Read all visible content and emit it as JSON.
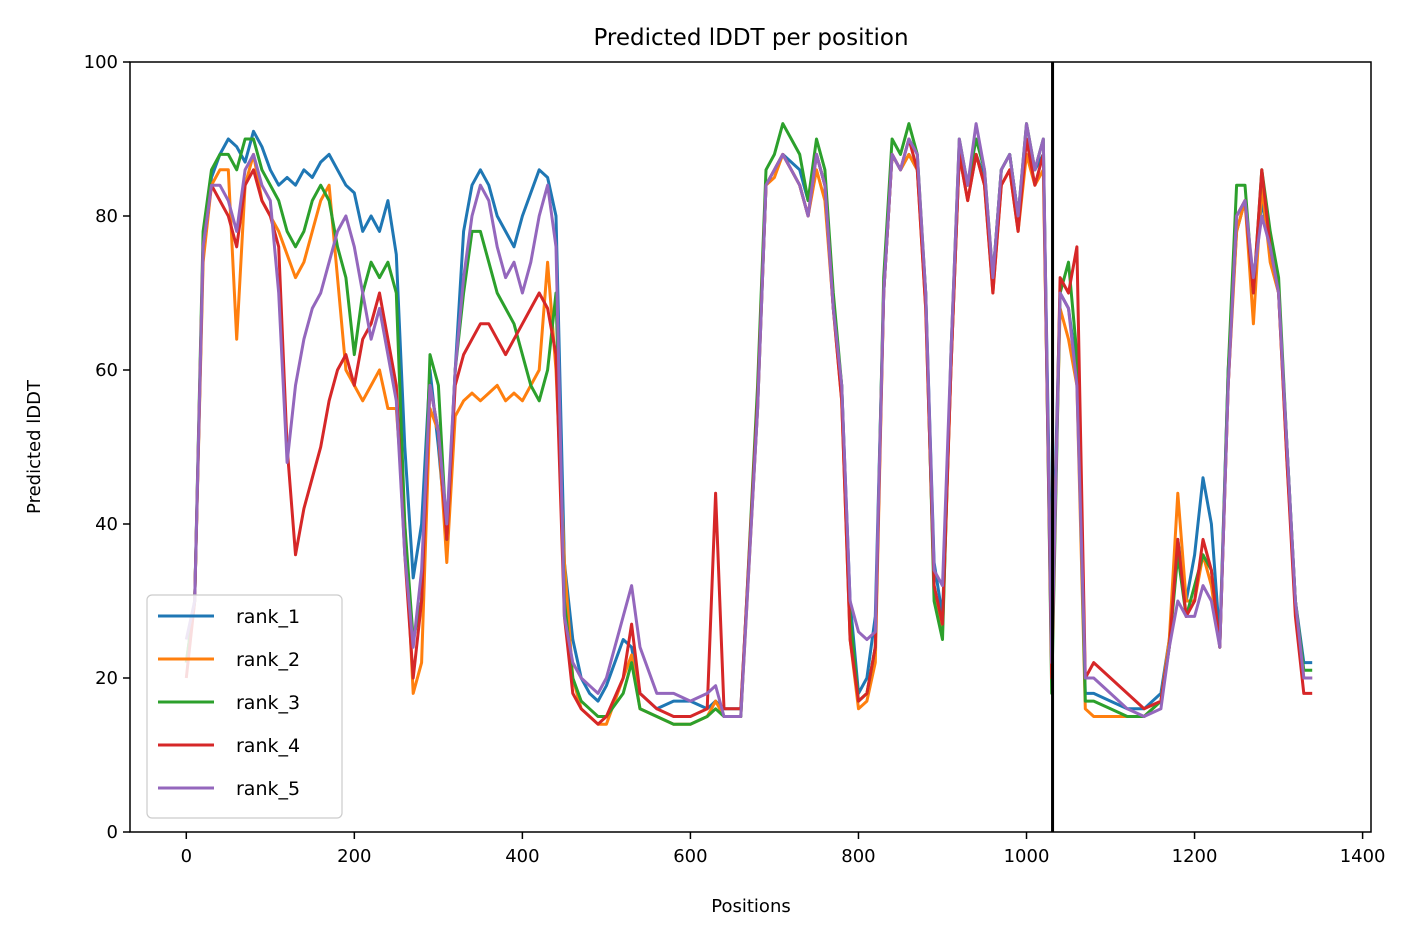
{
  "chart_data": {
    "type": "line",
    "title": "Predicted lDDT per position",
    "xlabel": "Positions",
    "ylabel": "Predicted lDDT",
    "xlim": [
      -67,
      1410
    ],
    "ylim": [
      0,
      100
    ],
    "xticks": [
      0,
      200,
      400,
      600,
      800,
      1000,
      1200,
      1400
    ],
    "yticks": [
      0,
      20,
      40,
      60,
      80,
      100
    ],
    "grid": false,
    "legend_position": "lower-left",
    "vline": {
      "x": 1031,
      "color": "#000000"
    },
    "series": [
      {
        "name": "rank_1",
        "color": "#1f77b4",
        "x": [
          0,
          10,
          20,
          30,
          40,
          50,
          60,
          70,
          80,
          90,
          100,
          110,
          120,
          130,
          140,
          150,
          160,
          170,
          180,
          190,
          200,
          210,
          220,
          230,
          240,
          250,
          260,
          270,
          280,
          290,
          300,
          310,
          320,
          330,
          340,
          350,
          360,
          370,
          380,
          390,
          400,
          410,
          420,
          430,
          440,
          450,
          460,
          470,
          480,
          490,
          500,
          520,
          530,
          540,
          560,
          580,
          600,
          620,
          630,
          640,
          660,
          680,
          690,
          700,
          710,
          720,
          730,
          740,
          750,
          760,
          770,
          780,
          790,
          800,
          810,
          820,
          830,
          840,
          850,
          860,
          870,
          880,
          890,
          900,
          910,
          920,
          930,
          940,
          950,
          960,
          970,
          980,
          990,
          1000,
          1010,
          1020,
          1030,
          1040,
          1050,
          1060,
          1070,
          1080,
          1100,
          1120,
          1140,
          1160,
          1170,
          1180,
          1190,
          1200,
          1210,
          1220,
          1230,
          1240,
          1250,
          1260,
          1270,
          1280,
          1290,
          1300,
          1310,
          1320,
          1330,
          1340
        ],
        "y": [
          22,
          30,
          75,
          85,
          88,
          90,
          89,
          87,
          91,
          89,
          86,
          84,
          85,
          84,
          86,
          85,
          87,
          88,
          86,
          84,
          83,
          78,
          80,
          78,
          82,
          75,
          50,
          33,
          40,
          60,
          50,
          38,
          60,
          78,
          84,
          86,
          84,
          80,
          78,
          76,
          80,
          83,
          86,
          85,
          80,
          35,
          25,
          20,
          18,
          17,
          19,
          25,
          24,
          18,
          16,
          17,
          17,
          16,
          17,
          16,
          16,
          55,
          84,
          86,
          88,
          87,
          86,
          82,
          88,
          84,
          68,
          58,
          30,
          18,
          20,
          28,
          70,
          88,
          86,
          88,
          86,
          70,
          35,
          28,
          60,
          88,
          84,
          88,
          85,
          72,
          86,
          88,
          80,
          90,
          86,
          88,
          28,
          70,
          68,
          60,
          18,
          18,
          17,
          16,
          16,
          18,
          25,
          38,
          30,
          36,
          46,
          40,
          25,
          60,
          78,
          82,
          70,
          82,
          76,
          70,
          50,
          30,
          22,
          22
        ]
      },
      {
        "name": "rank_2",
        "color": "#ff7f0e",
        "x": [
          0,
          10,
          20,
          30,
          40,
          50,
          60,
          70,
          80,
          90,
          100,
          110,
          120,
          130,
          140,
          150,
          160,
          170,
          180,
          190,
          200,
          210,
          220,
          230,
          240,
          250,
          260,
          270,
          280,
          290,
          300,
          310,
          320,
          330,
          340,
          350,
          360,
          370,
          380,
          390,
          400,
          410,
          420,
          430,
          440,
          450,
          460,
          470,
          480,
          490,
          500,
          520,
          530,
          540,
          560,
          580,
          600,
          620,
          630,
          640,
          660,
          680,
          690,
          700,
          710,
          720,
          730,
          740,
          750,
          760,
          770,
          780,
          790,
          800,
          810,
          820,
          830,
          840,
          850,
          860,
          870,
          880,
          890,
          900,
          910,
          920,
          930,
          940,
          950,
          960,
          970,
          980,
          990,
          1000,
          1010,
          1020,
          1030,
          1040,
          1050,
          1060,
          1070,
          1080,
          1100,
          1120,
          1140,
          1160,
          1170,
          1180,
          1190,
          1200,
          1210,
          1220,
          1230,
          1240,
          1250,
          1260,
          1270,
          1280,
          1290,
          1300,
          1310,
          1320,
          1330,
          1340
        ],
        "y": [
          22,
          30,
          74,
          84,
          86,
          86,
          64,
          84,
          88,
          82,
          80,
          78,
          75,
          72,
          74,
          78,
          82,
          84,
          72,
          60,
          58,
          56,
          58,
          60,
          55,
          55,
          40,
          18,
          22,
          55,
          52,
          35,
          54,
          56,
          57,
          56,
          57,
          58,
          56,
          57,
          56,
          58,
          60,
          74,
          60,
          35,
          20,
          16,
          15,
          14,
          14,
          20,
          23,
          16,
          15,
          14,
          14,
          15,
          17,
          15,
          15,
          55,
          84,
          85,
          88,
          86,
          84,
          80,
          86,
          82,
          68,
          56,
          25,
          16,
          17,
          22,
          70,
          88,
          86,
          88,
          86,
          68,
          32,
          26,
          60,
          88,
          82,
          88,
          84,
          70,
          84,
          86,
          78,
          88,
          84,
          86,
          24,
          68,
          64,
          58,
          16,
          15,
          15,
          15,
          15,
          17,
          25,
          44,
          30,
          30,
          36,
          32,
          24,
          58,
          78,
          82,
          66,
          84,
          74,
          70,
          48,
          30,
          20,
          20
        ]
      },
      {
        "name": "rank_3",
        "color": "#2ca02c",
        "x": [
          0,
          10,
          20,
          30,
          40,
          50,
          60,
          70,
          80,
          90,
          100,
          110,
          120,
          130,
          140,
          150,
          160,
          170,
          180,
          190,
          200,
          210,
          220,
          230,
          240,
          250,
          260,
          270,
          280,
          290,
          300,
          310,
          320,
          330,
          340,
          350,
          360,
          370,
          380,
          390,
          400,
          410,
          420,
          430,
          440,
          450,
          460,
          470,
          480,
          490,
          500,
          520,
          530,
          540,
          560,
          580,
          600,
          620,
          630,
          640,
          660,
          680,
          690,
          700,
          710,
          720,
          730,
          740,
          750,
          760,
          770,
          780,
          790,
          800,
          810,
          820,
          830,
          840,
          850,
          860,
          870,
          880,
          890,
          900,
          910,
          920,
          930,
          940,
          950,
          960,
          970,
          980,
          990,
          1000,
          1010,
          1020,
          1030,
          1040,
          1050,
          1060,
          1070,
          1080,
          1100,
          1120,
          1140,
          1160,
          1170,
          1180,
          1190,
          1200,
          1210,
          1220,
          1230,
          1240,
          1250,
          1260,
          1270,
          1280,
          1290,
          1300,
          1310,
          1320,
          1330,
          1340
        ],
        "y": [
          22,
          30,
          78,
          86,
          88,
          88,
          86,
          90,
          90,
          86,
          84,
          82,
          78,
          76,
          78,
          82,
          84,
          82,
          76,
          72,
          62,
          70,
          74,
          72,
          74,
          70,
          40,
          25,
          30,
          62,
          58,
          38,
          60,
          70,
          78,
          78,
          74,
          70,
          68,
          66,
          62,
          58,
          56,
          60,
          70,
          30,
          20,
          17,
          16,
          15,
          15,
          18,
          22,
          16,
          15,
          14,
          14,
          15,
          16,
          15,
          15,
          58,
          86,
          88,
          92,
          90,
          88,
          82,
          90,
          86,
          70,
          58,
          28,
          17,
          18,
          24,
          72,
          90,
          88,
          92,
          88,
          70,
          30,
          25,
          62,
          90,
          84,
          90,
          86,
          72,
          86,
          88,
          80,
          92,
          86,
          90,
          18,
          70,
          74,
          62,
          17,
          17,
          16,
          15,
          15,
          17,
          24,
          36,
          28,
          32,
          36,
          34,
          24,
          60,
          84,
          84,
          70,
          86,
          78,
          72,
          50,
          30,
          21,
          21
        ]
      },
      {
        "name": "rank_4",
        "color": "#d62728",
        "x": [
          0,
          10,
          20,
          30,
          40,
          50,
          60,
          70,
          80,
          90,
          100,
          110,
          120,
          130,
          140,
          150,
          160,
          170,
          180,
          190,
          200,
          210,
          220,
          230,
          240,
          250,
          260,
          270,
          280,
          290,
          300,
          310,
          320,
          330,
          340,
          350,
          360,
          370,
          380,
          390,
          400,
          410,
          420,
          430,
          440,
          450,
          460,
          470,
          480,
          490,
          500,
          520,
          530,
          540,
          560,
          580,
          600,
          620,
          630,
          640,
          660,
          680,
          690,
          700,
          710,
          720,
          730,
          740,
          750,
          760,
          770,
          780,
          790,
          800,
          810,
          820,
          830,
          840,
          850,
          860,
          870,
          880,
          890,
          900,
          910,
          920,
          930,
          940,
          950,
          960,
          970,
          980,
          990,
          1000,
          1010,
          1020,
          1030,
          1040,
          1050,
          1060,
          1070,
          1080,
          1100,
          1120,
          1140,
          1160,
          1170,
          1180,
          1190,
          1200,
          1210,
          1220,
          1230,
          1240,
          1250,
          1260,
          1270,
          1280,
          1290,
          1300,
          1310,
          1320,
          1330,
          1340
        ],
        "y": [
          20,
          30,
          76,
          84,
          82,
          80,
          76,
          84,
          86,
          82,
          80,
          76,
          50,
          36,
          42,
          46,
          50,
          56,
          60,
          62,
          58,
          64,
          66,
          70,
          64,
          58,
          36,
          20,
          30,
          58,
          52,
          38,
          58,
          62,
          64,
          66,
          66,
          64,
          62,
          64,
          66,
          68,
          70,
          68,
          62,
          28,
          18,
          16,
          15,
          14,
          15,
          20,
          27,
          18,
          16,
          15,
          15,
          16,
          44,
          16,
          16,
          56,
          84,
          86,
          88,
          86,
          84,
          80,
          88,
          84,
          68,
          56,
          25,
          17,
          18,
          24,
          70,
          88,
          86,
          90,
          86,
          68,
          32,
          27,
          60,
          88,
          82,
          88,
          84,
          70,
          84,
          86,
          78,
          90,
          84,
          88,
          20,
          72,
          70,
          76,
          20,
          22,
          20,
          18,
          16,
          17,
          24,
          38,
          28,
          30,
          38,
          34,
          24,
          58,
          80,
          82,
          70,
          86,
          76,
          70,
          48,
          28,
          18,
          18
        ]
      },
      {
        "name": "rank_5",
        "color": "#9467bd",
        "x": [
          0,
          10,
          20,
          30,
          40,
          50,
          60,
          70,
          80,
          90,
          100,
          110,
          120,
          130,
          140,
          150,
          160,
          170,
          180,
          190,
          200,
          210,
          220,
          230,
          240,
          250,
          260,
          270,
          280,
          290,
          300,
          310,
          320,
          330,
          340,
          350,
          360,
          370,
          380,
          390,
          400,
          410,
          420,
          430,
          440,
          450,
          460,
          470,
          480,
          490,
          500,
          520,
          530,
          540,
          560,
          580,
          600,
          620,
          630,
          640,
          660,
          680,
          690,
          700,
          710,
          720,
          730,
          740,
          750,
          760,
          770,
          780,
          790,
          800,
          810,
          820,
          830,
          840,
          850,
          860,
          870,
          880,
          890,
          900,
          910,
          920,
          930,
          940,
          950,
          960,
          970,
          980,
          990,
          1000,
          1010,
          1020,
          1030,
          1040,
          1050,
          1060,
          1070,
          1080,
          1100,
          1120,
          1140,
          1160,
          1170,
          1180,
          1190,
          1200,
          1210,
          1220,
          1230,
          1240,
          1250,
          1260,
          1270,
          1280,
          1290,
          1300,
          1310,
          1320,
          1330,
          1340
        ],
        "y": [
          25,
          30,
          76,
          84,
          84,
          82,
          78,
          86,
          88,
          84,
          82,
          70,
          48,
          58,
          64,
          68,
          70,
          74,
          78,
          80,
          76,
          70,
          64,
          68,
          62,
          56,
          36,
          24,
          34,
          58,
          52,
          40,
          60,
          72,
          80,
          84,
          82,
          76,
          72,
          74,
          70,
          74,
          80,
          84,
          76,
          28,
          22,
          20,
          19,
          18,
          20,
          28,
          32,
          24,
          18,
          18,
          17,
          18,
          19,
          15,
          15,
          55,
          84,
          86,
          88,
          86,
          84,
          80,
          88,
          84,
          68,
          58,
          30,
          26,
          25,
          26,
          70,
          88,
          86,
          90,
          88,
          70,
          34,
          32,
          62,
          90,
          84,
          92,
          86,
          72,
          86,
          88,
          80,
          92,
          86,
          90,
          22,
          70,
          68,
          58,
          20,
          20,
          18,
          16,
          15,
          16,
          24,
          30,
          28,
          28,
          32,
          30,
          24,
          58,
          80,
          82,
          72,
          80,
          76,
          70,
          50,
          30,
          20,
          20
        ]
      }
    ]
  }
}
